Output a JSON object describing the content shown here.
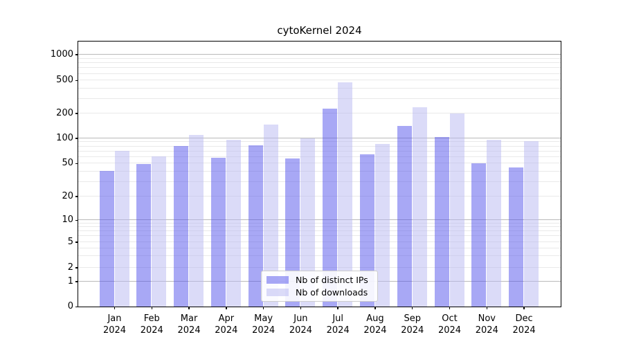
{
  "chart_data": {
    "type": "bar",
    "title": "cytoKernel 2024",
    "categories": [
      "Jan",
      "Feb",
      "Mar",
      "Apr",
      "May",
      "Jun",
      "Jul",
      "Aug",
      "Sep",
      "Oct",
      "Nov",
      "Dec"
    ],
    "category_year": "2024",
    "series": [
      {
        "name": "Nb of distinct IPs",
        "color": "rgba(81,81,235,0.5)",
        "color_over_white": "#a8a8f5",
        "values": [
          40,
          49,
          80,
          58,
          81,
          57,
          225,
          64,
          140,
          102,
          50,
          44
        ]
      },
      {
        "name": "Nb of downloads",
        "color": "rgba(183,183,241,0.5)",
        "color_over_white": "#dbdbf8",
        "values": [
          70,
          60,
          110,
          95,
          145,
          100,
          470,
          85,
          235,
          198,
          96,
          91
        ]
      }
    ],
    "xlabel": "",
    "ylabel": "",
    "yaxis": {
      "scale": "symlog",
      "ylim": [
        0,
        1400
      ],
      "tick_labels": [
        0,
        1,
        2,
        5,
        10,
        20,
        50,
        100,
        200,
        500,
        1000
      ],
      "major_gridlines": [
        1,
        10,
        100,
        1000
      ],
      "minor_gridlines": [
        2,
        3,
        4,
        5,
        6,
        7,
        8,
        9,
        20,
        30,
        40,
        50,
        60,
        70,
        80,
        90,
        200,
        300,
        400,
        500,
        600,
        700,
        800,
        900
      ],
      "anchors": [
        [
          0,
          0
        ],
        [
          1,
          0.094
        ],
        [
          2,
          0.1475
        ],
        [
          5,
          0.2441
        ],
        [
          10,
          0.3251
        ],
        [
          20,
          0.4164
        ],
        [
          50,
          0.5404
        ],
        [
          100,
          0.6345
        ],
        [
          200,
          0.7285
        ],
        [
          500,
          0.8525
        ],
        [
          1000,
          0.9504
        ]
      ]
    },
    "legend": {
      "position": "lower-center",
      "entries": [
        "Nb of distinct IPs",
        "Nb of downloads"
      ]
    },
    "colors": {
      "major_grid": "#b9b9b9",
      "minor_grid": "#e9e9e9",
      "spine": "#000000",
      "background": "#ffffff",
      "text": "#000000"
    },
    "grid": true
  }
}
